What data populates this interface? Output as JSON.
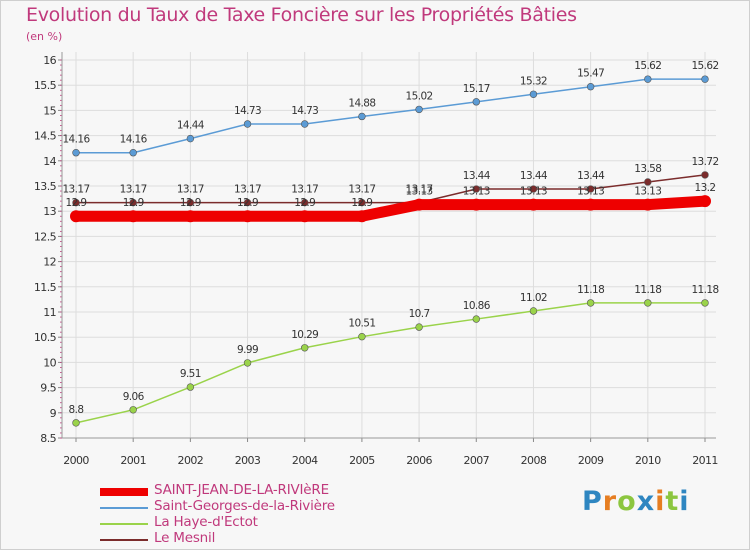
{
  "header": {
    "title": "Evolution du Taux de Taxe Foncière sur les Propriétés Bâties",
    "unit": "(en %)"
  },
  "logo": {
    "text": "Proxiti",
    "letters": [
      "P",
      "r",
      "o",
      "x",
      "i",
      "t",
      "i"
    ],
    "colors": [
      "#2e86c1",
      "#e67e22",
      "#8cc63f",
      "#2e86c1",
      "#e67e22",
      "#8cc63f",
      "#2e86c1"
    ]
  },
  "chart_data": {
    "type": "line",
    "title": "Evolution du Taux de Taxe Foncière sur les Propriétés Bâties",
    "ylabel": "(en %)",
    "xlabel": "",
    "ylim": [
      8.5,
      16
    ],
    "yticks": [
      "8.5",
      "9",
      "9.5",
      "10",
      "10.5",
      "11",
      "11.5",
      "12",
      "12.5",
      "13",
      "13.5",
      "14",
      "14.5",
      "15",
      "15.5",
      "16"
    ],
    "x": [
      "2000",
      "2001",
      "2002",
      "2003",
      "2004",
      "2005",
      "2006",
      "2007",
      "2008",
      "2009",
      "2010",
      "2011"
    ],
    "series": [
      {
        "name": "Saint-Georges-de-la-Rivière",
        "color": "#5b9bd5",
        "values": [
          14.16,
          14.16,
          14.44,
          14.73,
          14.73,
          14.88,
          15.02,
          15.17,
          15.32,
          15.47,
          15.62,
          15.62
        ],
        "labels": [
          "14.16",
          "14.16",
          "14.44",
          "14.73",
          "14.73",
          "14.88",
          "15.02",
          "15.17",
          "15.32",
          "15.47",
          "15.62",
          "15.62"
        ]
      },
      {
        "name": "La Haye-d'Ectot",
        "color": "#9ad34a",
        "values": [
          8.8,
          9.06,
          9.51,
          9.99,
          10.29,
          10.51,
          10.7,
          10.86,
          11.02,
          11.18,
          11.18,
          11.18
        ],
        "labels": [
          "8.8",
          "9.06",
          "9.51",
          "9.99",
          "10.29",
          "10.51",
          "10.7",
          "10.86",
          "11.02",
          "11.18",
          "11.18",
          "11.18"
        ]
      },
      {
        "name": "Le Mesnil",
        "color": "#7b2c2c",
        "values": [
          13.17,
          13.17,
          13.17,
          13.17,
          13.17,
          13.17,
          13.17,
          13.44,
          13.44,
          13.44,
          13.58,
          13.72
        ],
        "labels": [
          "13.17",
          "13.17",
          "13.17",
          "13.17",
          "13.17",
          "13.17",
          "13.17",
          "13.44",
          "13.44",
          "13.44",
          "13.58",
          "13.72"
        ]
      },
      {
        "name": "SAINT-JEAN-DE-LA-RIVIèRE",
        "color": "#ee0000",
        "values": [
          12.9,
          12.9,
          12.9,
          12.9,
          12.9,
          12.9,
          13.13,
          13.13,
          13.13,
          13.13,
          13.13,
          13.2
        ],
        "labels": [
          "12.9",
          "12.9",
          "12.9",
          "12.9",
          "12.9",
          "12.9",
          "13.13",
          "13.13",
          "13.13",
          "13.13",
          "13.13",
          "13.2"
        ]
      }
    ],
    "legend": [
      {
        "name": "SAINT-JEAN-DE-LA-RIVIèRE",
        "color": "#ee0000"
      },
      {
        "name": "Saint-Georges-de-la-Rivière",
        "color": "#5b9bd5"
      },
      {
        "name": "La Haye-d'Ectot",
        "color": "#9ad34a"
      },
      {
        "name": "Le Mesnil",
        "color": "#7b2c2c"
      }
    ]
  }
}
